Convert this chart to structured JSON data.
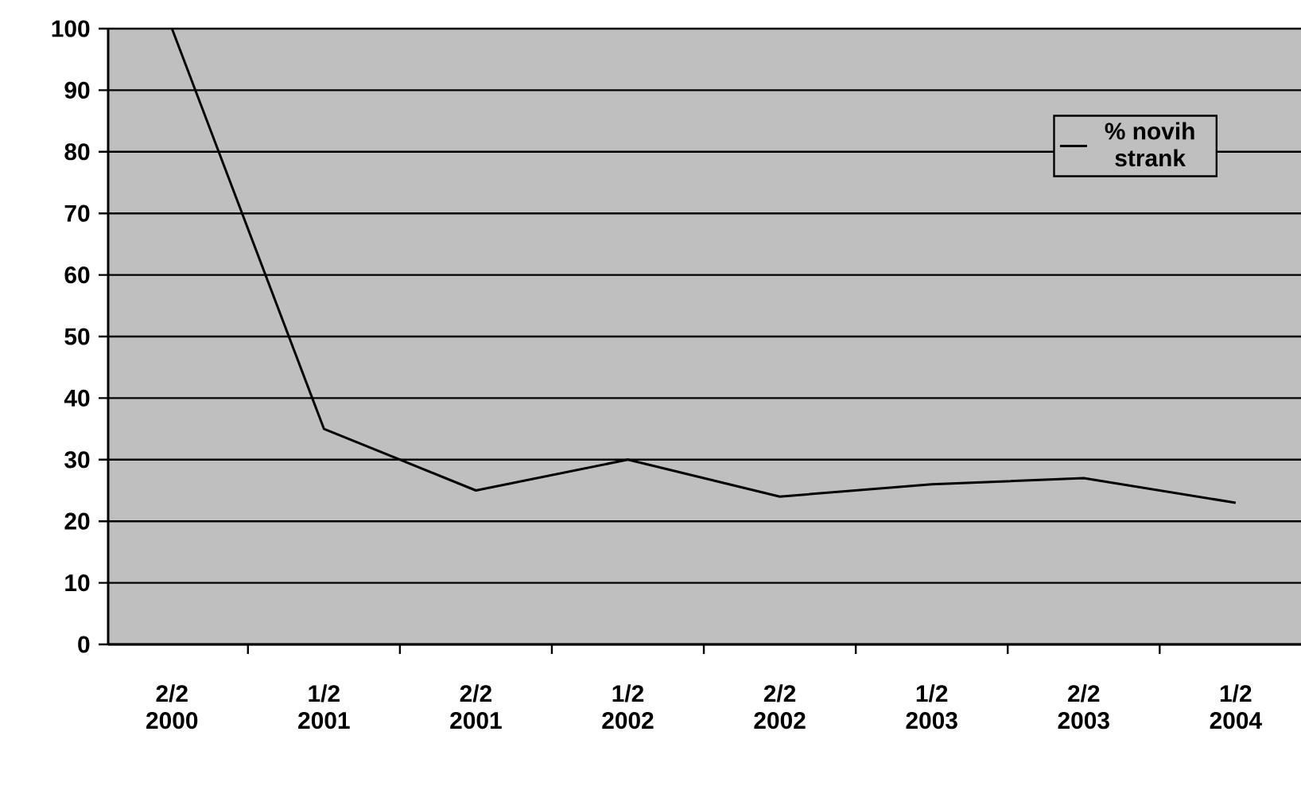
{
  "chart_data": {
    "type": "line",
    "categories": [
      "2/2 2000",
      "1/2 2001",
      "2/2 2001",
      "1/2 2002",
      "2/2 2002",
      "1/2 2003",
      "2/2 2003",
      "1/2 2004"
    ],
    "series": [
      {
        "name": "% novih strank",
        "color": "#000000",
        "values": [
          100,
          35,
          25,
          30,
          24,
          26,
          27,
          23
        ]
      }
    ],
    "ylim": [
      0,
      100
    ],
    "yticks": [
      0,
      10,
      20,
      30,
      40,
      50,
      60,
      70,
      80,
      90,
      100
    ],
    "grid": "y",
    "legend": "top right",
    "marker": "none",
    "line_style": "solid"
  }
}
